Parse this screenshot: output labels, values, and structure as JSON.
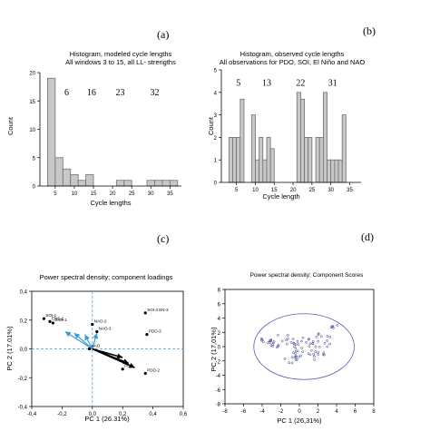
{
  "panels": {
    "a": {
      "letter": "(a)",
      "title1": "Histogram, modeled cycle lengths",
      "title2": "All windows 3 to 15, all LL- strengths",
      "ylabel": "Count",
      "xlabel": "Cycle lengths",
      "annotations": [
        "6",
        "16",
        "23",
        "32"
      ]
    },
    "b": {
      "letter": "(b)",
      "title1": "Histogram, observed cycle lengths",
      "title2": "All observations for PDO, SOI, El Niño and NAO",
      "ylabel": "Count",
      "xlabel": "Cycle length",
      "annotations": [
        "5",
        "13",
        "22",
        "31"
      ]
    },
    "c": {
      "letter": "(c)",
      "title": "Power spectral density; component loadings",
      "xlabel": "PC 1 (26.31%)",
      "ylabel": "PC 2 (17.01%)"
    },
    "d": {
      "letter": "(d)",
      "title": "Power spectral density; Component Scores",
      "xlabel": "PC 1 (26,31%)",
      "ylabel": "PC 2 (17,01%)"
    }
  },
  "colors": {
    "bar_fill": "#c8c8c8",
    "bar_stroke": "#707070",
    "arrow_blue": "#3a9bd6",
    "arrow_black": "#000000",
    "ellipse": "#5a5ab8",
    "score_text": "#3a3a8a"
  },
  "chart_data": [
    {
      "panel": "a",
      "type": "bar",
      "title": "Histogram, modeled cycle lengths — All windows 3 to 15, all LL- strengths",
      "xlabel": "Cycle lengths",
      "ylabel": "Count",
      "xlim": [
        1,
        38
      ],
      "ylim": [
        0,
        20
      ],
      "xticks": [
        5,
        10,
        15,
        20,
        25,
        30,
        35
      ],
      "yticks": [
        0,
        5,
        10,
        15,
        20
      ],
      "bin_width": 2,
      "bins": [
        {
          "x0": 3,
          "value": 19
        },
        {
          "x0": 5,
          "value": 5
        },
        {
          "x0": 7,
          "value": 3
        },
        {
          "x0": 9,
          "value": 2
        },
        {
          "x0": 11,
          "value": 1
        },
        {
          "x0": 13,
          "value": 2
        },
        {
          "x0": 15,
          "value": 0
        },
        {
          "x0": 17,
          "value": 0
        },
        {
          "x0": 19,
          "value": 0
        },
        {
          "x0": 21,
          "value": 1
        },
        {
          "x0": 23,
          "value": 1
        },
        {
          "x0": 25,
          "value": 0
        },
        {
          "x0": 27,
          "value": 0
        },
        {
          "x0": 29,
          "value": 1
        },
        {
          "x0": 31,
          "value": 1
        },
        {
          "x0": 33,
          "value": 1
        },
        {
          "x0": 35,
          "value": 1
        }
      ],
      "annotations": [
        {
          "text": "6",
          "x": 8,
          "y": 16
        },
        {
          "text": "16",
          "x": 14.5,
          "y": 16
        },
        {
          "text": "23",
          "x": 22,
          "y": 16
        },
        {
          "text": "32",
          "x": 31,
          "y": 16
        }
      ]
    },
    {
      "panel": "b",
      "type": "bar",
      "title": "Histogram, observed cycle lengths — All observations for PDO, SOI, El Niño and NAO",
      "xlabel": "Cycle length",
      "ylabel": "Count",
      "xlim": [
        1,
        38
      ],
      "ylim": [
        0,
        5
      ],
      "xticks": [
        5,
        10,
        15,
        20,
        25,
        30,
        35
      ],
      "yticks": [
        0,
        1,
        2,
        3,
        4,
        5
      ],
      "bin_width": 1,
      "bins": [
        {
          "x0": 3,
          "value": 2
        },
        {
          "x0": 4,
          "value": 2
        },
        {
          "x0": 5,
          "value": 2
        },
        {
          "x0": 6,
          "value": 3.7
        },
        {
          "x0": 7,
          "value": 0
        },
        {
          "x0": 8,
          "value": 0
        },
        {
          "x0": 9,
          "value": 3
        },
        {
          "x0": 10,
          "value": 1
        },
        {
          "x0": 11,
          "value": 2
        },
        {
          "x0": 12,
          "value": 1
        },
        {
          "x0": 13,
          "value": 2
        },
        {
          "x0": 14,
          "value": 1.5
        },
        {
          "x0": 15,
          "value": 0
        },
        {
          "x0": 16,
          "value": 0
        },
        {
          "x0": 17,
          "value": 0
        },
        {
          "x0": 18,
          "value": 0
        },
        {
          "x0": 19,
          "value": 0
        },
        {
          "x0": 20,
          "value": 0
        },
        {
          "x0": 21,
          "value": 4
        },
        {
          "x0": 22,
          "value": 3.7
        },
        {
          "x0": 23,
          "value": 2
        },
        {
          "x0": 24,
          "value": 2
        },
        {
          "x0": 25,
          "value": 0
        },
        {
          "x0": 26,
          "value": 2
        },
        {
          "x0": 27,
          "value": 2
        },
        {
          "x0": 28,
          "value": 4
        },
        {
          "x0": 29,
          "value": 1
        },
        {
          "x0": 30,
          "value": 1
        },
        {
          "x0": 31,
          "value": 1
        },
        {
          "x0": 32,
          "value": 1
        },
        {
          "x0": 33,
          "value": 3
        }
      ],
      "annotations": [
        {
          "text": "5",
          "x": 5.5,
          "y": 4.3
        },
        {
          "text": "13",
          "x": 13,
          "y": 4.3
        },
        {
          "text": "22",
          "x": 22,
          "y": 4.3
        },
        {
          "text": "31",
          "x": 30.5,
          "y": 4.3
        }
      ]
    },
    {
      "panel": "c",
      "type": "scatter",
      "title": "Power spectral density; component loadings",
      "xlabel": "PC 1 (26.31%)",
      "ylabel": "PC 2 (17.01%)",
      "xlim": [
        -0.4,
        0.6
      ],
      "ylim": [
        -0.4,
        0.4
      ],
      "xticks": [
        -0.4,
        -0.2,
        0.0,
        0.2,
        0.4,
        0.6
      ],
      "xtick_labels": [
        "-0,4",
        "-0,2",
        "0,0",
        "0,2",
        "0,4",
        "0,6"
      ],
      "yticks": [
        -0.4,
        -0.2,
        0.0,
        0.2,
        0.4
      ],
      "ytick_labels": [
        "-0,4",
        "-0,2",
        "0,0",
        "0,2",
        "0,4"
      ],
      "points": [
        {
          "label": "SOI-1",
          "x": -0.32,
          "y": 0.21
        },
        {
          "label": "ENS-2",
          "x": -0.28,
          "y": 0.19
        },
        {
          "label": "ENS-1",
          "x": -0.26,
          "y": 0.18
        },
        {
          "label": "NAO-2",
          "x": 0.0,
          "y": 0.17
        },
        {
          "label": "NAO-3",
          "x": 0.03,
          "y": 0.12
        },
        {
          "label": "SOI-3 EN-3",
          "x": 0.35,
          "y": 0.25
        },
        {
          "label": "PDO-3",
          "x": 0.36,
          "y": 0.1
        },
        {
          "label": "NAO",
          "x": -0.02,
          "y": 0.0
        },
        {
          "label": "PDO",
          "x": 0.2,
          "y": -0.14
        },
        {
          "label": "PDO-2",
          "x": 0.35,
          "y": -0.17
        }
      ],
      "arrows": [
        {
          "to": [
            -0.18,
            0.12
          ],
          "color": "blue"
        },
        {
          "to": [
            -0.12,
            0.11
          ],
          "color": "blue"
        },
        {
          "to": [
            -0.05,
            0.1
          ],
          "color": "blue"
        },
        {
          "to": [
            0.03,
            0.11
          ],
          "color": "blue"
        },
        {
          "to": [
            0.24,
            -0.1
          ],
          "color": "black"
        },
        {
          "to": [
            0.2,
            -0.06
          ],
          "color": "black"
        },
        {
          "to": [
            0.28,
            -0.13
          ],
          "color": "black"
        }
      ]
    },
    {
      "panel": "d",
      "type": "scatter",
      "title": "Power spectral density; Component Scores",
      "xlabel": "PC 1 (26,31%)",
      "ylabel": "PC 2 (17,01%)",
      "xlim": [
        -8,
        8
      ],
      "ylim": [
        -8,
        8
      ],
      "xticks": [
        -8,
        -6,
        -4,
        -2,
        0,
        2,
        4,
        6,
        8
      ],
      "yticks": [
        -8,
        -6,
        -4,
        -2,
        0,
        2,
        4,
        6,
        8
      ],
      "ellipse": {
        "cx": 0.5,
        "cy": 0,
        "rx": 5.4,
        "ry": 4.6
      }
    }
  ]
}
